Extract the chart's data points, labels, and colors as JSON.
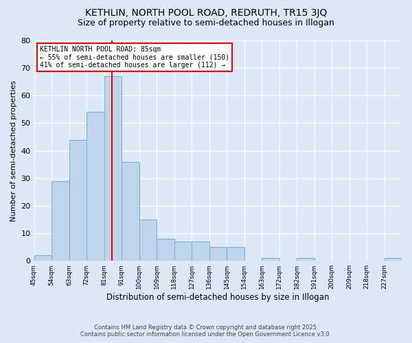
{
  "title": "KETHLIN, NORTH POOL ROAD, REDRUTH, TR15 3JQ",
  "subtitle": "Size of property relative to semi-detached houses in Illogan",
  "xlabel": "Distribution of semi-detached houses by size in Illogan",
  "ylabel": "Number of semi-detached properties",
  "bin_edges": [
    45,
    54,
    63,
    72,
    81,
    90,
    99,
    108,
    117,
    126,
    135,
    144,
    153,
    162,
    171,
    180,
    189,
    198,
    207,
    216,
    225,
    234
  ],
  "bin_labels": [
    "45sqm",
    "54sqm",
    "63sqm",
    "72sqm",
    "81sqm",
    "91sqm",
    "100sqm",
    "109sqm",
    "118sqm",
    "127sqm",
    "136sqm",
    "145sqm",
    "154sqm",
    "163sqm",
    "172sqm",
    "182sqm",
    "191sqm",
    "200sqm",
    "209sqm",
    "218sqm",
    "227sqm"
  ],
  "counts": [
    2,
    29,
    44,
    54,
    67,
    36,
    15,
    8,
    7,
    7,
    5,
    5,
    0,
    1,
    0,
    1,
    0,
    0,
    0,
    0,
    1
  ],
  "bar_color": "#bdd4ea",
  "bar_edge_color": "#7aaed6",
  "red_line_x": 85,
  "annotation_title": "KETHLIN NORTH POOL ROAD: 85sqm",
  "annotation_line1": "← 55% of semi-detached houses are smaller (150)",
  "annotation_line2": "41% of semi-detached houses are larger (112) →",
  "ylim": [
    0,
    80
  ],
  "yticks": [
    0,
    10,
    20,
    30,
    40,
    50,
    60,
    70,
    80
  ],
  "footer_line1": "Contains HM Land Registry data © Crown copyright and database right 2025.",
  "footer_line2": "Contains public sector information licensed under the Open Government Licence v3.0.",
  "bg_color": "#dce8f5",
  "plot_bg_color": "#dce8f5",
  "title_fontsize": 10,
  "subtitle_fontsize": 9,
  "ylabel_fontsize": 8,
  "xlabel_fontsize": 8.5
}
